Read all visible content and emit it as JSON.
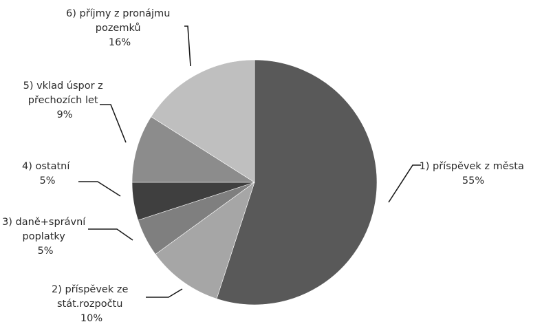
{
  "chart_data": {
    "type": "pie",
    "start_angle_deg": 0,
    "direction": "clockwise",
    "slices": [
      {
        "label_lines": [
          "1) příspěvek z města"
        ],
        "percent_label": "55%",
        "value": 55,
        "color": "#595959"
      },
      {
        "label_lines": [
          "2) příspěvek ze",
          "stát.rozpočtu"
        ],
        "percent_label": "10%",
        "value": 10,
        "color": "#a6a6a6"
      },
      {
        "label_lines": [
          "3) daně+správní",
          "poplatky"
        ],
        "percent_label": "5%",
        "value": 5,
        "color": "#7f7f7f"
      },
      {
        "label_lines": [
          "4) ostatní"
        ],
        "percent_label": "5%",
        "value": 5,
        "color": "#3f3f3f"
      },
      {
        "label_lines": [
          "5) vklad úspor z",
          "přechozích let"
        ],
        "percent_label": "9%",
        "value": 9,
        "color": "#8c8c8c"
      },
      {
        "label_lines": [
          "6) příjmy z pronájmu",
          "pozemků"
        ],
        "percent_label": "16%",
        "value": 16,
        "color": "#bfbfbf"
      }
    ]
  }
}
